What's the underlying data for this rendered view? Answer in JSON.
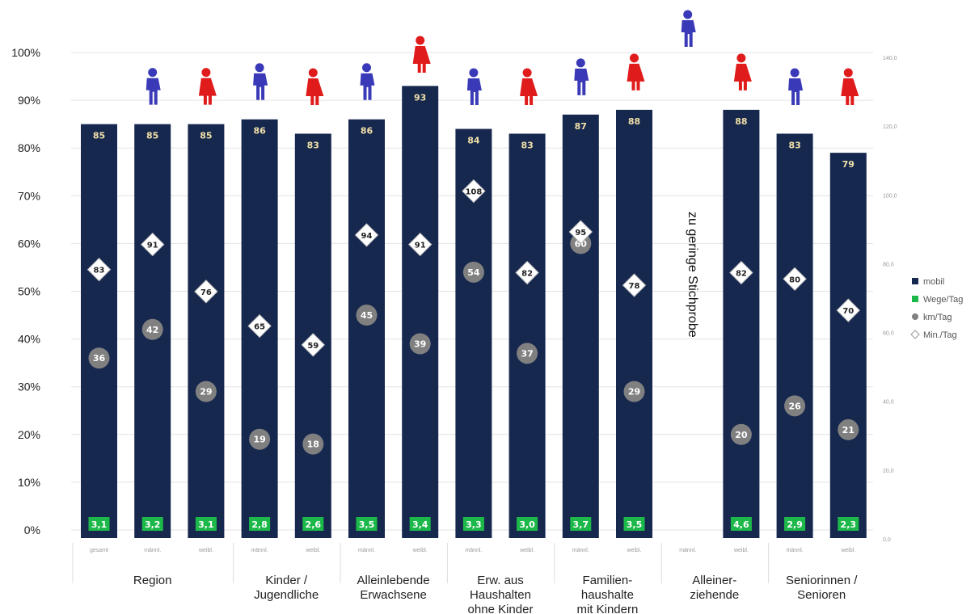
{
  "chart_data": {
    "type": "bar",
    "ylim": [
      0,
      100
    ],
    "y_ticks": [
      "0%",
      "10%",
      "20%",
      "30%",
      "40%",
      "50%",
      "60%",
      "70%",
      "80%",
      "90%",
      "100%"
    ],
    "y2_ticks": [
      "0,0",
      "20,0",
      "40,0",
      "60,0",
      "80,0",
      "100,0",
      "120,0",
      "140,0"
    ],
    "y2lim": [
      0,
      140
    ],
    "grid": true,
    "legend_position": "right",
    "legend": [
      {
        "key": "mobil",
        "label": "mobil",
        "color": "#17284f"
      },
      {
        "key": "wege",
        "label": "Wege/Tag",
        "color": "#1db84a"
      },
      {
        "key": "km",
        "label": "km/Tag",
        "color": "#808080"
      },
      {
        "key": "min",
        "label": "Min./Tag",
        "color": "#cccccc"
      }
    ],
    "groups": [
      {
        "label": "Region",
        "span": 3
      },
      {
        "label": "Kinder /\nJugendliche",
        "span": 2
      },
      {
        "label": "Alleinlebende\nErwachsene",
        "span": 2
      },
      {
        "label": "Erw. aus\nHaushalten\nohne Kinder",
        "span": 2
      },
      {
        "label": "Familien-\nhaushalte\nmit Kindern",
        "span": 2
      },
      {
        "label": "Alleiner-\nziehende",
        "span": 2
      },
      {
        "label": "Seniorinnen /\nSenioren",
        "span": 2
      }
    ],
    "categories": [
      {
        "sub": "gesamt",
        "gender": "",
        "mobil": 85,
        "mobil_label": "85",
        "wege": "3,1",
        "km": 36,
        "km_label": "36",
        "min": 83,
        "min_label": "83"
      },
      {
        "sub": "männl.",
        "gender": "m",
        "mobil": 85,
        "mobil_label": "85",
        "wege": "3,2",
        "km": 42,
        "km_label": "42",
        "min": 91,
        "min_label": "91"
      },
      {
        "sub": "weibl.",
        "gender": "f",
        "mobil": 85,
        "mobil_label": "85",
        "wege": "3,1",
        "km": 29,
        "km_label": "29",
        "min": 76,
        "min_label": "76"
      },
      {
        "sub": "männl.",
        "gender": "m",
        "mobil": 86,
        "mobil_label": "86",
        "wege": "2,8",
        "km": 19,
        "km_label": "19",
        "min": 65,
        "min_label": "65"
      },
      {
        "sub": "weibl.",
        "gender": "f",
        "mobil": 83,
        "mobil_label": "83",
        "wege": "2,6",
        "km": 18,
        "km_label": "18",
        "min": 59,
        "min_label": "59"
      },
      {
        "sub": "männl.",
        "gender": "m",
        "mobil": 86,
        "mobil_label": "86",
        "wege": "3,5",
        "km": 45,
        "km_label": "45",
        "min": 94,
        "min_label": "94"
      },
      {
        "sub": "weibl.",
        "gender": "f",
        "mobil": 93,
        "mobil_label": "93",
        "wege": "3,4",
        "km": 39,
        "km_label": "39",
        "min": 91,
        "min_label": "91"
      },
      {
        "sub": "männl.",
        "gender": "m",
        "mobil": 84,
        "mobil_label": "84",
        "wege": "3,3",
        "km": 54,
        "km_label": "54",
        "min": 108,
        "min_label": "108"
      },
      {
        "sub": "weibl.",
        "gender": "f",
        "mobil": 83,
        "mobil_label": "83",
        "wege": "3,0",
        "km": 37,
        "km_label": "37",
        "min": 82,
        "min_label": "82"
      },
      {
        "sub": "männl.",
        "gender": "m",
        "mobil": 87,
        "mobil_label": "87",
        "wege": "3,7",
        "km": 60,
        "km_label": "60",
        "min": 95,
        "min_label": "95"
      },
      {
        "sub": "weibl.",
        "gender": "f",
        "mobil": 88,
        "mobil_label": "88",
        "wege": "3,5",
        "km": 29,
        "km_label": "29",
        "min": 78,
        "min_label": "78"
      },
      {
        "sub": "männl.",
        "gender": "m",
        "mobil": null,
        "mobil_label": "",
        "wege": "",
        "km": null,
        "km_label": "",
        "min": null,
        "min_label": ""
      },
      {
        "sub": "weibl.",
        "gender": "f",
        "mobil": 88,
        "mobil_label": "88",
        "wege": "4,6",
        "km": 20,
        "km_label": "20",
        "min": 82,
        "min_label": "82"
      },
      {
        "sub": "männl.",
        "gender": "m",
        "mobil": 83,
        "mobil_label": "83",
        "wege": "2,9",
        "km": 26,
        "km_label": "26",
        "min": 80,
        "min_label": "80"
      },
      {
        "sub": "weibl.",
        "gender": "f",
        "mobil": 79,
        "mobil_label": "79",
        "wege": "2,3",
        "km": 21,
        "km_label": "21",
        "min": 70,
        "min_label": "70"
      }
    ],
    "annotation": "zu geringe Stichprobe",
    "colors": {
      "male": "#3a3ab8",
      "female": "#e01b1b"
    }
  }
}
